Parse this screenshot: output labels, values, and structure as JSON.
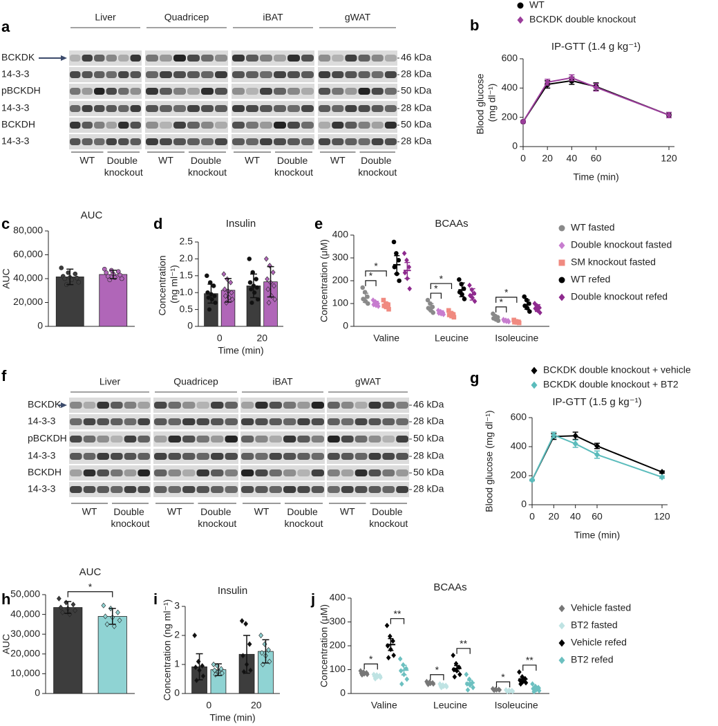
{
  "blots": [
    {
      "panel": "a",
      "tissues": [
        "Liver",
        "Quadricep",
        "iBAT",
        "gWAT"
      ],
      "rows": [
        "BCKDK",
        "14-3-3",
        "pBCKDH",
        "14-3-3",
        "BCKDH",
        "14-3-3"
      ],
      "sizes": [
        "46 kDa",
        "28 kDa",
        "50 kDa",
        "28 kDa",
        "50 kDa",
        "28 kDa"
      ],
      "groups": [
        "WT",
        "Double knockout"
      ]
    },
    {
      "panel": "f",
      "tissues": [
        "Liver",
        "Quadricep",
        "iBAT",
        "gWAT"
      ],
      "rows": [
        "BCKDK",
        "14-3-3",
        "pBCKDH",
        "14-3-3",
        "BCKDH",
        "14-3-3"
      ],
      "sizes": [
        "46 kDa",
        "28 kDa",
        "50 kDa",
        "28 kDa",
        "50 kDa",
        "28 kDa"
      ],
      "groups": [
        "WT",
        "Double knockout"
      ]
    }
  ],
  "chart_data": [
    {
      "panel": "b",
      "type": "line",
      "title": "IP-GTT (1.4 g kg⁻¹)",
      "xlabel": "Time (min)",
      "ylabel": "Blood glucose (mg dl⁻¹)",
      "legend": "top",
      "x": [
        0,
        20,
        40,
        60,
        120
      ],
      "xlim": [
        0,
        120
      ],
      "xticks": [
        0,
        20,
        40,
        60,
        120
      ],
      "ylim": [
        0,
        600
      ],
      "yticks": [
        0,
        200,
        400,
        600
      ],
      "series": [
        {
          "name": "WT",
          "color": "#000000",
          "marker": "circle",
          "values": [
            170,
            425,
            450,
            410,
            215
          ],
          "errors": [
            8,
            25,
            25,
            25,
            18
          ]
        },
        {
          "name": "BCKDK double knockout",
          "color": "#9b3d9b",
          "marker": "diamond",
          "values": [
            170,
            440,
            470,
            405,
            215
          ],
          "errors": [
            8,
            20,
            20,
            25,
            18
          ]
        }
      ]
    },
    {
      "panel": "c",
      "type": "bar",
      "title": "AUC",
      "ylabel": "AUC",
      "marker": "circle",
      "categories": [
        null,
        null
      ],
      "values": [
        41500,
        43500
      ],
      "errors": [
        6500,
        3500
      ],
      "colors": [
        "#3d3d3d",
        "#b066b8"
      ],
      "points": [
        [
          49000,
          45000,
          44000,
          42000,
          41000,
          40500,
          40000,
          39000,
          37000,
          35000
        ],
        [
          48000,
          47000,
          46000,
          45000,
          44000,
          43000,
          42000,
          41000,
          40000,
          39000
        ]
      ],
      "ylim": [
        0,
        80000
      ],
      "yticks": [
        0,
        {
          "value": 20000,
          "label": "20,000"
        },
        {
          "value": 40000,
          "label": "40,000"
        },
        {
          "value": 60000,
          "label": "60,000"
        },
        {
          "value": 80000,
          "label": "80,000"
        }
      ]
    },
    {
      "panel": "d",
      "type": "bar",
      "title": "Insulin",
      "xlabel": "Time (min)",
      "ylabel": "Concentration (ng ml⁻¹)",
      "categories": [
        "0",
        "20"
      ],
      "ylim": [
        0,
        2.5
      ],
      "yticks": [
        0,
        0.5,
        {
          "value": 1,
          "label": "1.0"
        },
        1.5,
        {
          "value": 2,
          "label": "2.0"
        },
        2.5
      ],
      "series": [
        {
          "color": "#3d3d3d",
          "marker": "circle",
          "values": [
            0.97,
            1.2
          ],
          "errors": [
            0.28,
            0.35
          ],
          "points": [
            [
              1.5,
              1.3,
              1.2,
              1.0,
              0.95,
              0.9,
              0.85,
              0.8,
              0.7,
              0.5
            ],
            [
              2.0,
              1.6,
              1.4,
              1.3,
              1.2,
              1.15,
              1.1,
              1.0,
              0.8,
              0.7
            ]
          ]
        },
        {
          "color": "#b066b8",
          "marker": "diamond",
          "values": [
            1.07,
            1.32
          ],
          "errors": [
            0.35,
            0.45
          ],
          "points": [
            [
              1.55,
              1.4,
              1.3,
              1.1,
              1.05,
              1.0,
              0.9,
              0.85,
              0.8,
              0.7
            ],
            [
              2.0,
              1.8,
              1.6,
              1.4,
              1.3,
              1.2,
              1.1,
              0.9,
              0.8,
              0.7
            ]
          ]
        }
      ]
    },
    {
      "panel": "e",
      "type": "dot",
      "title": "BCAAs",
      "ylabel": "Concentration (μM)",
      "legend": "right",
      "categories": [
        "Valine",
        "Leucine",
        "Isoleucine"
      ],
      "ylim": [
        0,
        400
      ],
      "yticks": [
        0,
        100,
        200,
        300,
        400
      ],
      "series": [
        {
          "name": "WT fasted",
          "color": "#8a8a8a",
          "marker": "circle",
          "values": [
            125,
            85,
            38
          ],
          "errors": [
            20,
            15,
            8
          ],
          "points": [
            [
              170,
              150,
              130,
              120,
              110,
              100
            ],
            [
              115,
              100,
              85,
              80,
              70,
              60
            ],
            [
              55,
              45,
              40,
              35,
              30,
              25
            ]
          ]
        },
        {
          "name": "Double knockout fasted",
          "color": "#c77dcf",
          "marker": "diamond",
          "values": [
            100,
            60,
            25
          ],
          "errors": [
            10,
            8,
            4
          ],
          "points": [
            [
              115,
              108,
              100,
              95,
              92,
              88
            ],
            [
              70,
              65,
              60,
              58,
              55,
              52
            ],
            [
              30,
              27,
              25,
              24,
              22,
              20
            ]
          ]
        },
        {
          "name": "SM knockout fasted",
          "color": "#f08a80",
          "marker": "square",
          "values": [
            92,
            52,
            20
          ],
          "errors": [
            12,
            10,
            4
          ],
          "points": [
            [
              115,
              100,
              95,
              90,
              85,
              75
            ],
            [
              70,
              58,
              52,
              50,
              45,
              40
            ],
            [
              28,
              22,
              20,
              18,
              17,
              15
            ]
          ]
        },
        {
          "name": "WT refed",
          "color": "#000000",
          "marker": "circle",
          "values": [
            270,
            160,
            95
          ],
          "errors": [
            40,
            30,
            20
          ],
          "points": [
            [
              370,
              320,
              290,
              260,
              230,
              200
            ],
            [
              205,
              185,
              165,
              150,
              140,
              120
            ],
            [
              130,
              115,
              100,
              90,
              80,
              65
            ]
          ]
        },
        {
          "name": "Double knockout refed",
          "color": "#8e2a8e",
          "marker": "diamond",
          "values": [
            245,
            140,
            80
          ],
          "errors": [
            35,
            25,
            15
          ],
          "points": [
            [
              320,
              290,
              260,
              235,
              210,
              165
            ],
            [
              180,
              160,
              145,
              135,
              125,
              110
            ],
            [
              100,
              90,
              82,
              78,
              70,
              60
            ]
          ]
        }
      ],
      "significance": [
        {
          "label": "*",
          "from": 0,
          "to": 1
        },
        {
          "label": "*",
          "from": 0,
          "to": 2
        },
        {
          "label": "*",
          "from": 5,
          "to": 6
        },
        {
          "label": "*",
          "from": 5,
          "to": 7
        },
        {
          "label": "*",
          "from": 10,
          "to": 11
        },
        {
          "label": "*",
          "from": 10,
          "to": 12
        }
      ]
    },
    {
      "panel": "g",
      "type": "line",
      "title": "IP-GTT (1.5 g kg⁻¹)",
      "xlabel": "Time (min)",
      "ylabel": "Blood glucose (mg dl⁻¹)",
      "legend": "top",
      "x": [
        0,
        20,
        40,
        60,
        120
      ],
      "xlim": [
        0,
        120
      ],
      "xticks": [
        0,
        20,
        40,
        60,
        120
      ],
      "ylim": [
        0,
        600
      ],
      "yticks": [
        0,
        200,
        400,
        600
      ],
      "series": [
        {
          "name": "BCKDK double knockout + vehicle",
          "color": "#000000",
          "marker": "diamond",
          "values": [
            170,
            470,
            475,
            405,
            225
          ],
          "errors": [
            5,
            20,
            25,
            18,
            8
          ]
        },
        {
          "name": "BCKDK double knockout + BT2",
          "color": "#5bbcbc",
          "marker": "diamond",
          "values": [
            170,
            480,
            420,
            345,
            190
          ],
          "errors": [
            5,
            20,
            25,
            25,
            8
          ]
        }
      ]
    },
    {
      "panel": "h",
      "type": "bar",
      "title": "AUC",
      "ylabel": "AUC",
      "marker": "diamond",
      "categories": [
        null,
        null
      ],
      "values": [
        43500,
        39000
      ],
      "errors": [
        3000,
        4000
      ],
      "colors": [
        "#3d3d3d",
        "#8fd3d3"
      ],
      "points": [
        [
          48000,
          46000,
          45000,
          43500,
          43000,
          42000,
          41000,
          40000
        ],
        [
          44500,
          43000,
          41000,
          39000,
          38500,
          37000,
          35000,
          34000
        ]
      ],
      "ylim": [
        0,
        50000
      ],
      "yticks": [
        0,
        {
          "value": 10000,
          "label": "10,000"
        },
        {
          "value": 20000,
          "label": "20,000"
        },
        {
          "value": 30000,
          "label": "30,000"
        },
        {
          "value": 40000,
          "label": "40,000"
        },
        {
          "value": 50000,
          "label": "50,000"
        }
      ],
      "significance": [
        {
          "label": "*",
          "from": 0,
          "to": 1
        }
      ]
    },
    {
      "panel": "i",
      "type": "bar",
      "title": "Insulin",
      "xlabel": "Time (min)",
      "ylabel": "Concentration (ng ml⁻¹)",
      "categories": [
        "0",
        "20"
      ],
      "ylim": [
        0,
        3
      ],
      "yticks": [
        0,
        1,
        2,
        3
      ],
      "series": [
        {
          "color": "#3d3d3d",
          "marker": "diamond",
          "values": [
            0.92,
            1.35
          ],
          "errors": [
            0.45,
            0.65
          ],
          "points": [
            [
              2.0,
              1.1,
              0.95,
              0.9,
              0.8,
              0.6,
              0.45
            ],
            [
              2.5,
              2.4,
              1.7,
              1.3,
              1.0,
              0.8,
              0.75
            ]
          ]
        },
        {
          "color": "#8fd3d3",
          "marker": "diamond",
          "values": [
            0.82,
            1.45
          ],
          "errors": [
            0.2,
            0.4
          ],
          "points": [
            [
              1.0,
              0.95,
              0.85,
              0.8,
              0.75,
              0.7,
              0.65
            ],
            [
              2.0,
              1.7,
              1.5,
              1.4,
              1.3,
              1.1,
              1.0
            ]
          ]
        }
      ]
    },
    {
      "panel": "j",
      "type": "dot",
      "title": "BCAAs",
      "ylabel": "Concentration (μM)",
      "legend": "right",
      "categories": [
        "Valine",
        "Leucine",
        "Isoleucine"
      ],
      "ylim": [
        0,
        400
      ],
      "yticks": [
        0,
        100,
        200,
        300,
        400
      ],
      "series": [
        {
          "name": "Vehicle fasted",
          "color": "#777777",
          "marker": "diamond",
          "values": [
            85,
            45,
            17
          ],
          "errors": [
            6,
            4,
            2
          ],
          "points": [
            [
              95,
              90,
              87,
              85,
              82,
              80,
              78
            ],
            [
              50,
              48,
              45,
              44,
              42,
              40,
              38
            ],
            [
              20,
              18,
              17,
              16,
              15,
              15,
              14
            ]
          ]
        },
        {
          "name": "BT2 fasted",
          "color": "#bfe3e3",
          "marker": "diamond",
          "values": [
            72,
            33,
            12
          ],
          "errors": [
            5,
            4,
            2
          ],
          "points": [
            [
              80,
              78,
              75,
              72,
              70,
              67,
              62
            ],
            [
              40,
              36,
              34,
              32,
              30,
              28,
              25
            ],
            [
              15,
              13,
              12,
              11,
              10,
              9,
              8
            ]
          ]
        },
        {
          "name": "Vehicle refed",
          "color": "#000000",
          "marker": "diamond",
          "values": [
            205,
            105,
            60
          ],
          "errors": [
            25,
            12,
            8
          ],
          "points": [
            [
              285,
              240,
              220,
              200,
              185,
              160,
              150
            ],
            [
              160,
              125,
              110,
              100,
              95,
              80,
              70
            ],
            [
              90,
              70,
              62,
              55,
              50,
              45,
              40
            ]
          ]
        },
        {
          "name": "BT2 refed",
          "color": "#6cc0c0",
          "marker": "diamond",
          "values": [
            98,
            45,
            22
          ],
          "errors": [
            20,
            10,
            5
          ],
          "points": [
            [
              145,
              120,
              105,
              95,
              80,
              60,
              40
            ],
            [
              80,
              60,
              45,
              40,
              35,
              25,
              15
            ],
            [
              40,
              30,
              25,
              20,
              15,
              12,
              8
            ]
          ]
        }
      ],
      "significance": [
        {
          "label": "*",
          "from": 0,
          "to": 1
        },
        {
          "label": "**",
          "from": 2,
          "to": 3
        },
        {
          "label": "*",
          "from": 4,
          "to": 5
        },
        {
          "label": "**",
          "from": 6,
          "to": 7
        },
        {
          "label": "*",
          "from": 8,
          "to": 9
        },
        {
          "label": "**",
          "from": 10,
          "to": 11
        }
      ]
    }
  ]
}
